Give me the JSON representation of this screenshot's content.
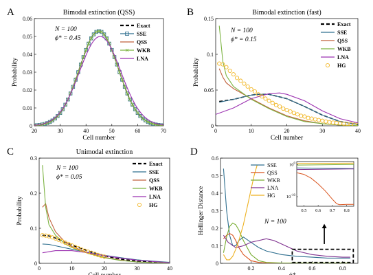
{
  "chart_data": [
    {
      "panel": "A",
      "type": "line",
      "title": "Bimodal extinction (QSS)",
      "xlabel": "Cell number",
      "ylabel": "Probability",
      "xlim": [
        20,
        70
      ],
      "ylim": [
        0,
        0.06
      ],
      "xticks": [
        20,
        30,
        40,
        50,
        60,
        70
      ],
      "yticks": [
        0,
        0.01,
        0.02,
        0.03,
        0.04,
        0.05,
        0.06
      ],
      "annotations": [
        "N = 100",
        "ϕ* = 0.45"
      ],
      "legend_position": "top-right",
      "series": [
        {
          "name": "Exact",
          "color": "#000000",
          "style": "dashed",
          "kind": "gaussian",
          "mu": 45,
          "sigma": 7.5,
          "amp": 0.053
        },
        {
          "name": "SSE",
          "color": "#2f6f8f",
          "style": "square-markers",
          "kind": "gaussian",
          "mu": 45,
          "sigma": 7.5,
          "amp": 0.053
        },
        {
          "name": "QSS",
          "color": "#c0603a",
          "style": "solid",
          "kind": "gaussian",
          "mu": 45,
          "sigma": 7.5,
          "amp": 0.053
        },
        {
          "name": "WKB",
          "color": "#7cb342",
          "style": "x-markers",
          "kind": "gaussian",
          "mu": 45,
          "sigma": 7.5,
          "amp": 0.053
        },
        {
          "name": "LNA",
          "color": "#9b30b0",
          "style": "solid",
          "kind": "gaussian",
          "mu": 45.5,
          "sigma": 8.0,
          "amp": 0.05
        }
      ]
    },
    {
      "panel": "B",
      "type": "line",
      "title": "Bimodal extinction (fast)",
      "xlabel": "Cell number",
      "ylabel": "Probability",
      "xlim": [
        0,
        40
      ],
      "ylim": [
        0,
        0.15
      ],
      "xticks": [
        0,
        10,
        20,
        30,
        40
      ],
      "yticks": [
        0,
        0.05,
        0.1,
        0.15
      ],
      "annotations": [
        "N = 100",
        "ϕ* = 0.15"
      ],
      "legend_position": "top-right",
      "series": [
        {
          "name": "Exact",
          "color": "#000000",
          "style": "dashed",
          "x": [
            1,
            5,
            10,
            12,
            15,
            20,
            25,
            30,
            35,
            40
          ],
          "y": [
            0.034,
            0.037,
            0.043,
            0.044,
            0.044,
            0.038,
            0.027,
            0.015,
            0.006,
            0.002
          ]
        },
        {
          "name": "SSE",
          "color": "#2f6f8f",
          "style": "solid",
          "x": [
            1,
            5,
            10,
            12,
            15,
            20,
            25,
            30,
            35,
            40
          ],
          "y": [
            0.033,
            0.037,
            0.043,
            0.044,
            0.044,
            0.038,
            0.027,
            0.015,
            0.006,
            0.002
          ]
        },
        {
          "name": "QSS",
          "color": "#c0603a",
          "style": "solid",
          "x": [
            1,
            2,
            3,
            5,
            10,
            15,
            20,
            25,
            30,
            35,
            40
          ],
          "y": [
            0.08,
            0.068,
            0.06,
            0.052,
            0.038,
            0.025,
            0.014,
            0.007,
            0.003,
            0.001,
            0.0005
          ]
        },
        {
          "name": "WKB",
          "color": "#7cb342",
          "style": "solid",
          "x": [
            1,
            2,
            3,
            5,
            10,
            15,
            20,
            25,
            30,
            35,
            40
          ],
          "y": [
            0.14,
            0.09,
            0.07,
            0.055,
            0.037,
            0.024,
            0.013,
            0.006,
            0.003,
            0.001,
            0.0005
          ]
        },
        {
          "name": "LNA",
          "color": "#9b30b0",
          "style": "solid",
          "x": [
            0,
            5,
            10,
            15,
            18,
            20,
            25,
            30,
            35,
            40
          ],
          "y": [
            0.016,
            0.025,
            0.038,
            0.045,
            0.046,
            0.044,
            0.035,
            0.021,
            0.01,
            0.004
          ]
        },
        {
          "name": "HG",
          "color": "#f2b624",
          "style": "circle-markers",
          "x": [
            1,
            2,
            3,
            4,
            5,
            6,
            7,
            8,
            9,
            10,
            11,
            12,
            13,
            14,
            15,
            16,
            17,
            18,
            19,
            20,
            21,
            22,
            23,
            24,
            25,
            26,
            27,
            28,
            29,
            30,
            31,
            32,
            33,
            34,
            35,
            36,
            37,
            38,
            39,
            40
          ],
          "y": [
            0.087,
            0.086,
            0.082,
            0.077,
            0.072,
            0.067,
            0.063,
            0.059,
            0.055,
            0.051,
            0.048,
            0.044,
            0.041,
            0.038,
            0.035,
            0.032,
            0.029,
            0.027,
            0.024,
            0.022,
            0.02,
            0.018,
            0.016,
            0.014,
            0.013,
            0.011,
            0.01,
            0.009,
            0.008,
            0.007,
            0.006,
            0.005,
            0.0045,
            0.004,
            0.0035,
            0.003,
            0.0025,
            0.002,
            0.0015,
            0.001
          ]
        }
      ]
    },
    {
      "panel": "C",
      "type": "line",
      "title": "Unimodal extinction",
      "xlabel": "Cell number",
      "ylabel": "Probability",
      "xlim": [
        0,
        40
      ],
      "ylim": [
        0,
        0.3
      ],
      "xticks": [
        0,
        10,
        20,
        30,
        40
      ],
      "yticks": [
        0,
        0.1,
        0.2,
        0.3
      ],
      "annotations": [
        "N = 100",
        "ϕ* = 0.05"
      ],
      "legend_position": "top-right",
      "series": [
        {
          "name": "Exact",
          "color": "#000000",
          "style": "dashed",
          "x": [
            1,
            3,
            5,
            8,
            10,
            15,
            20,
            25,
            30,
            35,
            40
          ],
          "y": [
            0.08,
            0.078,
            0.072,
            0.06,
            0.052,
            0.035,
            0.021,
            0.012,
            0.006,
            0.003,
            0.001
          ]
        },
        {
          "name": "SSE",
          "color": "#2f6f8f",
          "style": "solid",
          "x": [
            1,
            3,
            5,
            10,
            15,
            20,
            25,
            30,
            35,
            40
          ],
          "y": [
            0.055,
            0.054,
            0.05,
            0.04,
            0.031,
            0.023,
            0.016,
            0.01,
            0.006,
            0.003
          ]
        },
        {
          "name": "QSS",
          "color": "#c0603a",
          "style": "solid",
          "x": [
            1,
            2,
            3,
            5,
            8,
            10,
            15,
            20,
            25,
            30,
            35,
            40
          ],
          "y": [
            0.16,
            0.17,
            0.13,
            0.09,
            0.06,
            0.048,
            0.03,
            0.017,
            0.009,
            0.004,
            0.002,
            0.001
          ]
        },
        {
          "name": "WKB",
          "color": "#7cb342",
          "style": "solid",
          "x": [
            1,
            2,
            3,
            5,
            8,
            10,
            15,
            20,
            25,
            30,
            35,
            40
          ],
          "y": [
            0.28,
            0.16,
            0.11,
            0.08,
            0.055,
            0.045,
            0.028,
            0.016,
            0.008,
            0.004,
            0.002,
            0.001
          ]
        },
        {
          "name": "LNA",
          "color": "#9b30b0",
          "style": "solid",
          "x": [
            1,
            5,
            10,
            15,
            20,
            25,
            30,
            35,
            40
          ],
          "y": [
            0.03,
            0.036,
            0.036,
            0.03,
            0.022,
            0.015,
            0.009,
            0.005,
            0.002
          ]
        },
        {
          "name": "HG",
          "color": "#f2b624",
          "style": "circle-markers",
          "x": [
            1,
            2,
            3,
            4,
            5,
            6,
            7,
            8,
            9,
            10,
            11,
            12,
            13,
            14,
            15,
            16,
            17,
            18,
            19,
            20
          ],
          "y": [
            0.08,
            0.079,
            0.077,
            0.074,
            0.071,
            0.067,
            0.063,
            0.059,
            0.055,
            0.051,
            0.047,
            0.043,
            0.039,
            0.036,
            0.033,
            0.03,
            0.027,
            0.024,
            0.021,
            0.019
          ]
        }
      ]
    },
    {
      "panel": "D",
      "type": "line",
      "title": "",
      "xlabel": "ϕ*",
      "ylabel": "Hellinger Distance",
      "xlim": [
        0,
        0.9
      ],
      "ylim": [
        0,
        0.6
      ],
      "xticks": [
        0.2,
        0.4,
        0.6,
        0.8
      ],
      "yticks": [
        0,
        0.1,
        0.2,
        0.3,
        0.4,
        0.5,
        0.6
      ],
      "annotations": [
        "N = 100"
      ],
      "legend_position": "top-left",
      "series": [
        {
          "name": "SSE",
          "color": "#2f6f8f",
          "style": "solid",
          "x": [
            0.02,
            0.04,
            0.06,
            0.08,
            0.1,
            0.12,
            0.15,
            0.2,
            0.25,
            0.3,
            0.4,
            0.5,
            0.6,
            0.7,
            0.8,
            0.85
          ],
          "y": [
            0.54,
            0.3,
            0.16,
            0.1,
            0.1,
            0.13,
            0.15,
            0.12,
            0.09,
            0.07,
            0.05,
            0.04,
            0.035,
            0.03,
            0.03,
            0.03
          ]
        },
        {
          "name": "QSS",
          "color": "#d9541e",
          "style": "solid",
          "x": [
            0.02,
            0.04,
            0.06,
            0.08,
            0.1,
            0.12,
            0.15,
            0.2,
            0.25,
            0.3,
            0.4,
            0.5,
            0.6,
            0.7,
            0.8,
            0.85
          ],
          "y": [
            0.14,
            0.16,
            0.17,
            0.16,
            0.13,
            0.09,
            0.05,
            0.015,
            0.005,
            0.002,
            0.001,
            0.001,
            0.001,
            0.001,
            0.001,
            0.001
          ]
        },
        {
          "name": "WKB",
          "color": "#77ac30",
          "style": "solid",
          "x": [
            0.02,
            0.04,
            0.06,
            0.08,
            0.1,
            0.12,
            0.15,
            0.2,
            0.25,
            0.3,
            0.4,
            0.5,
            0.6,
            0.7,
            0.8,
            0.85
          ],
          "y": [
            0.06,
            0.15,
            0.21,
            0.23,
            0.22,
            0.19,
            0.13,
            0.05,
            0.015,
            0.005,
            0.002,
            0.001,
            0.001,
            0.001,
            0.001,
            0.001
          ]
        },
        {
          "name": "LNA",
          "color": "#7e2f8e",
          "style": "solid",
          "x": [
            0.02,
            0.05,
            0.1,
            0.15,
            0.2,
            0.25,
            0.3,
            0.35,
            0.4,
            0.5,
            0.6,
            0.7,
            0.8,
            0.85
          ],
          "y": [
            0.16,
            0.12,
            0.09,
            0.1,
            0.12,
            0.13,
            0.14,
            0.13,
            0.11,
            0.07,
            0.05,
            0.04,
            0.035,
            0.035
          ]
        },
        {
          "name": "HG",
          "color": "#edb120",
          "style": "solid",
          "x": [
            0.02,
            0.04,
            0.06,
            0.08,
            0.1,
            0.12,
            0.15,
            0.18,
            0.2,
            0.22,
            0.24
          ],
          "y": [
            0.05,
            0.02,
            0.02,
            0.04,
            0.08,
            0.13,
            0.22,
            0.34,
            0.42,
            0.5,
            0.56
          ]
        }
      ],
      "inset": {
        "xlim": [
          0.45,
          0.85
        ],
        "xticks": [
          0.5,
          0.6,
          0.7,
          0.8
        ],
        "ytick_labels": [
          "10^0",
          "10^-10"
        ],
        "yticks_exp": [
          0,
          -10
        ],
        "ylim_exp": [
          -13,
          1
        ],
        "series": [
          {
            "name": "SSE",
            "color": "#2f6f8f",
            "x": [
              0.45,
              0.85
            ],
            "y_exp": [
              -1.0,
              -1.2
            ]
          },
          {
            "name": "QSS",
            "color": "#d9541e",
            "x": [
              0.45,
              0.5,
              0.55,
              0.6,
              0.65,
              0.7,
              0.73,
              0.75,
              0.8,
              0.85
            ],
            "y_exp": [
              -2.5,
              -3.0,
              -4.2,
              -6.0,
              -8.2,
              -10.8,
              -12.2,
              -12.5,
              -12.4,
              -12.4
            ]
          },
          {
            "name": "WKB",
            "color": "#77ac30",
            "x": [
              0.45,
              0.85
            ],
            "y_exp": [
              -0.1,
              0.1
            ]
          },
          {
            "name": "LNA",
            "color": "#7e2f8e",
            "x": [
              0.45,
              0.85
            ],
            "y_exp": [
              -1.5,
              -1.3
            ]
          },
          {
            "name": "HG",
            "color": "#edb120",
            "x": [
              0.45,
              0.85
            ],
            "y_exp": [
              0.4,
              0.5
            ]
          }
        ]
      }
    }
  ],
  "panel_labels": [
    "A",
    "B",
    "C",
    "D"
  ]
}
